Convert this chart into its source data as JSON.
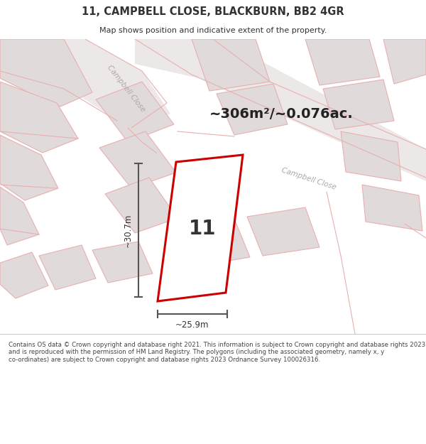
{
  "title": "11, CAMPBELL CLOSE, BLACKBURN, BB2 4GR",
  "subtitle": "Map shows position and indicative extent of the property.",
  "area_text": "~306m²/~0.076ac.",
  "property_number": "11",
  "dim_width": "~25.9m",
  "dim_height": "~30.7m",
  "footer": "Contains OS data © Crown copyright and database right 2021. This information is subject to Crown copyright and database rights 2023 and is reproduced with the permission of HM Land Registry. The polygons (including the associated geometry, namely x, y co-ordinates) are subject to Crown copyright and database rights 2023 Ordnance Survey 100026316.",
  "bg_map": "#f0eeee",
  "road_fill": "#e8e0e0",
  "plot_fill_gray": "#e0dada",
  "plot_edge_pink": "#e8b0b0",
  "road_edge_pink": "#e8b0b0",
  "plot_outline_red": "#cc0000",
  "plot_fill_white": "#ffffff",
  "road_label_gray": "#b0b0b0",
  "title_color": "#333333",
  "dim_color": "#555555",
  "street_label1": "Campbell Close",
  "street_label2": "Campbell Close"
}
